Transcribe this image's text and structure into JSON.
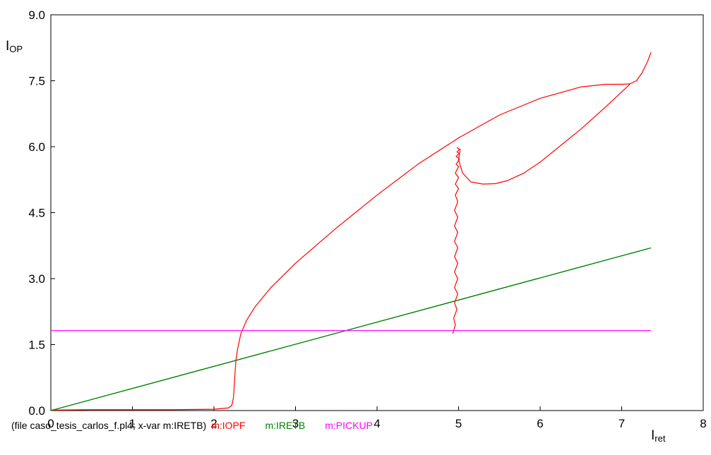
{
  "chart_data": {
    "type": "line",
    "xlim": [
      0,
      8
    ],
    "ylim": [
      0,
      9
    ],
    "x_ticks": [
      "0",
      "1",
      "2",
      "3",
      "4",
      "5",
      "6",
      "7",
      "8"
    ],
    "y_ticks": [
      "0.0",
      "1.5",
      "3.0",
      "4.5",
      "6.0",
      "7.5",
      "9.0"
    ],
    "grid": false,
    "ylabel": {
      "main": "I",
      "sub": "OP"
    },
    "xlabel": {
      "main": "I",
      "sub": "ret"
    },
    "footer": {
      "file_text": "(file caso_tesis_carlos_f.pl4; x-var m:IRETB)",
      "legend": [
        "m:IOPF",
        "m:IRETB",
        "m:PICKUP"
      ]
    },
    "series": [
      {
        "name": "m:IOPF",
        "color": "#ff0000",
        "segments": [
          {
            "x": [
              0,
              0.5,
              1.0,
              1.5,
              2.0,
              2.18,
              2.22,
              2.24,
              2.25,
              2.26,
              2.27,
              2.29,
              2.33,
              2.4,
              2.5,
              2.7,
              3.0,
              3.5,
              4.0,
              4.5,
              5.0,
              5.5,
              6.0,
              6.5,
              6.8,
              7.0,
              7.1,
              7.18,
              7.25,
              7.32,
              7.36
            ],
            "y": [
              0.01,
              0.02,
              0.02,
              0.02,
              0.03,
              0.06,
              0.12,
              0.3,
              0.6,
              0.9,
              1.15,
              1.4,
              1.75,
              2.05,
              2.35,
              2.8,
              3.35,
              4.15,
              4.9,
              5.6,
              6.2,
              6.72,
              7.1,
              7.36,
              7.42,
              7.42,
              7.43,
              7.5,
              7.68,
              7.95,
              8.15
            ]
          },
          {
            "x": [
              7.1,
              6.8,
              6.5,
              6.2,
              6.0,
              5.8,
              5.6,
              5.45,
              5.3,
              5.15,
              5.05,
              5.0,
              5.02
            ],
            "y": [
              7.42,
              6.9,
              6.4,
              5.95,
              5.65,
              5.4,
              5.23,
              5.16,
              5.15,
              5.2,
              5.4,
              5.7,
              5.95
            ]
          },
          {
            "x": [
              4.93,
              4.96,
              4.94,
              4.98,
              4.95,
              4.99,
              4.95,
              4.99,
              4.95,
              4.99,
              4.95,
              4.99,
              4.95,
              4.99,
              4.95,
              4.99,
              4.95,
              4.99,
              4.96,
              5.0,
              4.96,
              5.0,
              4.96,
              5.0,
              4.97,
              5.01,
              4.97,
              5.01,
              4.98,
              5.01,
              4.98
            ],
            "y": [
              1.75,
              1.95,
              2.1,
              2.3,
              2.45,
              2.65,
              2.8,
              3.0,
              3.15,
              3.35,
              3.5,
              3.7,
              3.85,
              4.05,
              4.2,
              4.4,
              4.55,
              4.75,
              4.9,
              5.05,
              5.15,
              5.3,
              5.4,
              5.55,
              5.6,
              5.72,
              5.78,
              5.85,
              5.88,
              5.94,
              5.98
            ]
          }
        ]
      },
      {
        "name": "m:IRETB",
        "color": "#008000",
        "segments": [
          {
            "x": [
              0,
              7.36
            ],
            "y": [
              0,
              3.7
            ]
          }
        ]
      },
      {
        "name": "m:PICKUP",
        "color": "#ff00ff",
        "segments": [
          {
            "x": [
              0,
              7.36
            ],
            "y": [
              1.82,
              1.82
            ]
          }
        ]
      }
    ]
  }
}
